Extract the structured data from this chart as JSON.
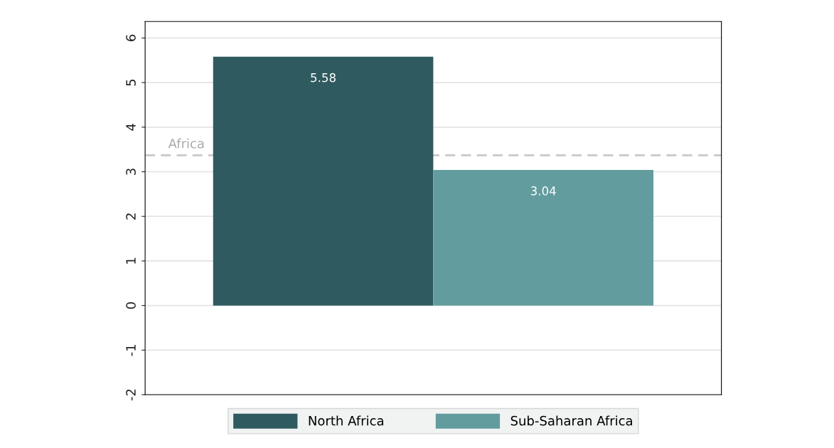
{
  "chart_data": {
    "type": "bar",
    "categories": [
      null
    ],
    "series": [
      {
        "name": "North Africa",
        "color": "#2f5a60",
        "values": [
          5.58
        ]
      },
      {
        "name": "Sub-Saharan Africa",
        "color": "#639c9e",
        "values": [
          3.04
        ]
      }
    ],
    "data_labels": true,
    "ylim": [
      -2,
      6.37
    ],
    "yticks": [
      -2,
      -1,
      0,
      1,
      2,
      3,
      4,
      5,
      6
    ],
    "ref_lines": [
      {
        "axis": "y",
        "value": 3.37,
        "label": "Africa",
        "color": "#c8c8c8",
        "line_style": "dashed"
      }
    ],
    "grid": "y",
    "legend": "bottom"
  }
}
